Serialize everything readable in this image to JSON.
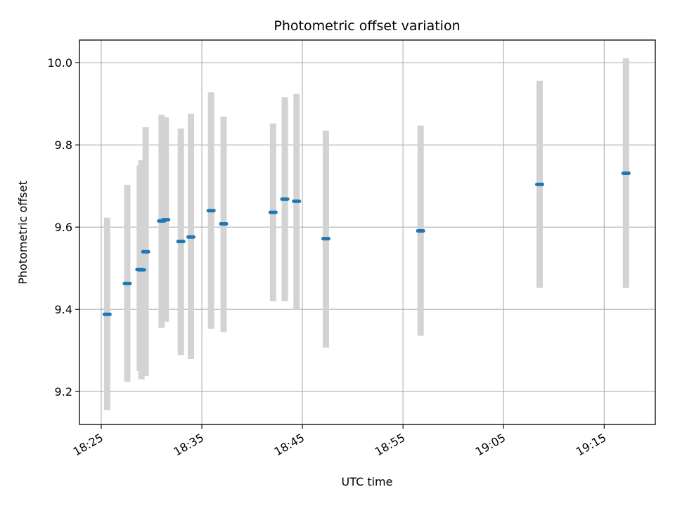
{
  "chart_data": {
    "type": "scatter",
    "title": "Photometric offset variation",
    "xlabel": "UTC time",
    "ylabel": "Photometric offset",
    "x_tick_labels": [
      "18:25",
      "18:35",
      "18:45",
      "18:55",
      "19:05",
      "19:15"
    ],
    "y_tick_labels": [
      "9.2",
      "9.4",
      "9.6",
      "9.8",
      "10.0"
    ],
    "x_ticks": [
      "18:25",
      "18:35",
      "18:45",
      "18:55",
      "19:05",
      "19:15"
    ],
    "y_ticks": [
      9.2,
      9.4,
      9.6,
      9.8,
      10.0
    ],
    "xlim": [
      "18:22:50",
      "19:20:05"
    ],
    "ylim": [
      9.12,
      10.055
    ],
    "grid": true,
    "series": [
      {
        "marker_color": "#1f77b4",
        "error_bar_color": "#d3d3d3",
        "points": [
          {
            "x": "18:25:35",
            "y": 9.388,
            "y_low": 9.155,
            "y_high": 9.623
          },
          {
            "x": "18:27:35",
            "y": 9.463,
            "y_low": 9.224,
            "y_high": 9.703
          },
          {
            "x": "18:28:50",
            "y": 9.497,
            "y_low": 9.25,
            "y_high": 9.75
          },
          {
            "x": "18:29:00",
            "y": 9.496,
            "y_low": 9.23,
            "y_high": 9.763
          },
          {
            "x": "18:29:25",
            "y": 9.54,
            "y_low": 9.238,
            "y_high": 9.843
          },
          {
            "x": "18:31:00",
            "y": 9.615,
            "y_low": 9.355,
            "y_high": 9.873
          },
          {
            "x": "18:31:25",
            "y": 9.618,
            "y_low": 9.37,
            "y_high": 9.867
          },
          {
            "x": "18:32:55",
            "y": 9.565,
            "y_low": 9.289,
            "y_high": 9.84
          },
          {
            "x": "18:33:55",
            "y": 9.576,
            "y_low": 9.279,
            "y_high": 9.876
          },
          {
            "x": "18:35:55",
            "y": 9.64,
            "y_low": 9.353,
            "y_high": 9.928
          },
          {
            "x": "18:37:10",
            "y": 9.608,
            "y_low": 9.345,
            "y_high": 9.869
          },
          {
            "x": "18:42:05",
            "y": 9.636,
            "y_low": 9.42,
            "y_high": 9.852
          },
          {
            "x": "18:43:15",
            "y": 9.668,
            "y_low": 9.42,
            "y_high": 9.916
          },
          {
            "x": "18:44:25",
            "y": 9.663,
            "y_low": 9.4,
            "y_high": 9.924
          },
          {
            "x": "18:47:20",
            "y": 9.572,
            "y_low": 9.307,
            "y_high": 9.835
          },
          {
            "x": "18:56:45",
            "y": 9.591,
            "y_low": 9.336,
            "y_high": 9.847
          },
          {
            "x": "19:08:35",
            "y": 9.704,
            "y_low": 9.452,
            "y_high": 9.956
          },
          {
            "x": "19:17:10",
            "y": 9.731,
            "y_low": 9.452,
            "y_high": 10.011
          }
        ]
      }
    ]
  }
}
